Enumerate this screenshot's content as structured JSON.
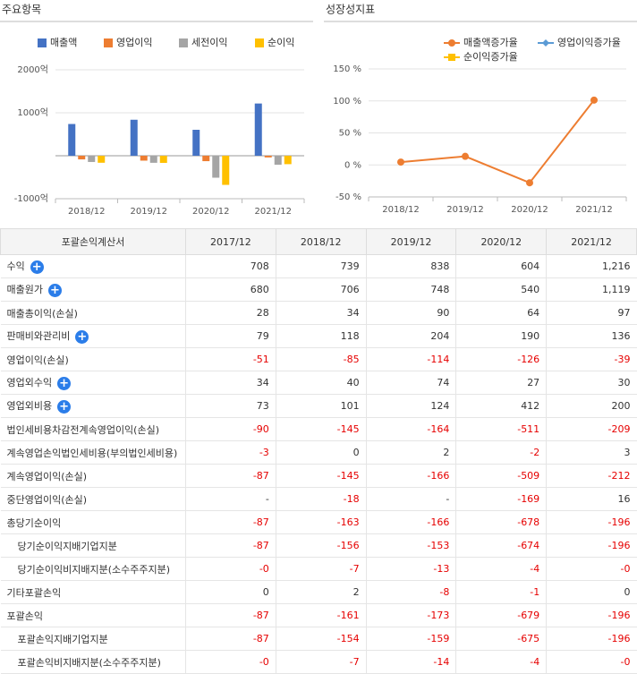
{
  "charts": [
    {
      "heading": "주요항목",
      "chart_data": {
        "type": "bar",
        "categories": [
          "2018/12",
          "2019/12",
          "2020/12",
          "2021/12"
        ],
        "series": [
          {
            "name": "매출액",
            "color": "#4472c4",
            "values": [
              739,
              838,
              604,
              1216
            ]
          },
          {
            "name": "영업이익",
            "color": "#ed7d31",
            "values": [
              -85,
              -114,
              -126,
              -39
            ]
          },
          {
            "name": "세전이익",
            "color": "#a5a5a5",
            "values": [
              -145,
              -164,
              -511,
              -209
            ]
          },
          {
            "name": "순이익",
            "color": "#ffc000",
            "values": [
              -163,
              -166,
              -678,
              -196
            ]
          }
        ],
        "ylim": [
          -1000,
          2000
        ],
        "yticks": [
          {
            "value": 2000,
            "label": "2000억"
          },
          {
            "value": 1000,
            "label": "1000억"
          },
          {
            "value": -1000,
            "label": "-1000억"
          }
        ],
        "grid": true
      }
    },
    {
      "heading": "성장성지표",
      "chart_data": {
        "type": "line",
        "categories": [
          "2018/12",
          "2019/12",
          "2020/12",
          "2021/12"
        ],
        "series": [
          {
            "name": "매출액증가율",
            "color": "#ed7d31",
            "marker": "circle",
            "values": [
              4.4,
              13.4,
              -27.9,
              101.3
            ]
          },
          {
            "name": "영업이익증가율",
            "color": "#5b9bd5",
            "marker": "diamond",
            "values": [
              null,
              null,
              null,
              null
            ]
          },
          {
            "name": "순이익증가율",
            "color": "#ffc000",
            "marker": "square",
            "values": [
              null,
              null,
              null,
              null
            ]
          }
        ],
        "ylim": [
          -50,
          150
        ],
        "yticks": [
          {
            "value": 150,
            "label": "150 %"
          },
          {
            "value": 100,
            "label": "100 %"
          },
          {
            "value": 50,
            "label": "50 %"
          },
          {
            "value": 0,
            "label": "0 %"
          },
          {
            "value": -50,
            "label": "-50 %"
          }
        ],
        "grid": true
      }
    }
  ],
  "table": {
    "header": [
      "포괄손익계산서",
      "2017/12",
      "2018/12",
      "2019/12",
      "2020/12",
      "2021/12"
    ],
    "rows": [
      {
        "label": "수익",
        "expandable": true,
        "values": [
          "708",
          "739",
          "838",
          "604",
          "1,216"
        ]
      },
      {
        "label": "매출원가",
        "expandable": true,
        "values": [
          "680",
          "706",
          "748",
          "540",
          "1,119"
        ]
      },
      {
        "label": "매출총이익(손실)",
        "values": [
          "28",
          "34",
          "90",
          "64",
          "97"
        ]
      },
      {
        "label": "판매비와관리비",
        "expandable": true,
        "values": [
          "79",
          "118",
          "204",
          "190",
          "136"
        ]
      },
      {
        "label": "영업이익(손실)",
        "values": [
          "-51",
          "-85",
          "-114",
          "-126",
          "-39"
        ]
      },
      {
        "label": "영업외수익",
        "expandable": true,
        "values": [
          "34",
          "40",
          "74",
          "27",
          "30"
        ]
      },
      {
        "label": "영업외비용",
        "expandable": true,
        "values": [
          "73",
          "101",
          "124",
          "412",
          "200"
        ]
      },
      {
        "label": "법인세비용차감전계속영업이익(손실)",
        "values": [
          "-90",
          "-145",
          "-164",
          "-511",
          "-209"
        ]
      },
      {
        "label": "계속영업손익법인세비용(부의법인세비용)",
        "values": [
          "-3",
          "0",
          "2",
          "-2",
          "3"
        ]
      },
      {
        "label": "계속영업이익(손실)",
        "values": [
          "-87",
          "-145",
          "-166",
          "-509",
          "-212"
        ]
      },
      {
        "label": "중단영업이익(손실)",
        "values": [
          "-",
          "-18",
          "-",
          "-169",
          "16"
        ]
      },
      {
        "label": "총당기순이익",
        "values": [
          "-87",
          "-163",
          "-166",
          "-678",
          "-196"
        ]
      },
      {
        "label": "당기순이익지배기업지분",
        "sub": true,
        "values": [
          "-87",
          "-156",
          "-153",
          "-674",
          "-196"
        ]
      },
      {
        "label": "당기순이익비지배지분(소수주주지분)",
        "sub": true,
        "values": [
          "-0",
          "-7",
          "-13",
          "-4",
          "-0"
        ]
      },
      {
        "label": "기타포괄손익",
        "values": [
          "0",
          "2",
          "-8",
          "-1",
          "0"
        ]
      },
      {
        "label": "포괄손익",
        "values": [
          "-87",
          "-161",
          "-173",
          "-679",
          "-196"
        ]
      },
      {
        "label": "포괄손익지배기업지분",
        "sub": true,
        "values": [
          "-87",
          "-154",
          "-159",
          "-675",
          "-196"
        ]
      },
      {
        "label": "포괄손익비지배지분(소수주주지분)",
        "sub": true,
        "values": [
          "-0",
          "-7",
          "-14",
          "-4",
          "-0"
        ]
      }
    ]
  }
}
